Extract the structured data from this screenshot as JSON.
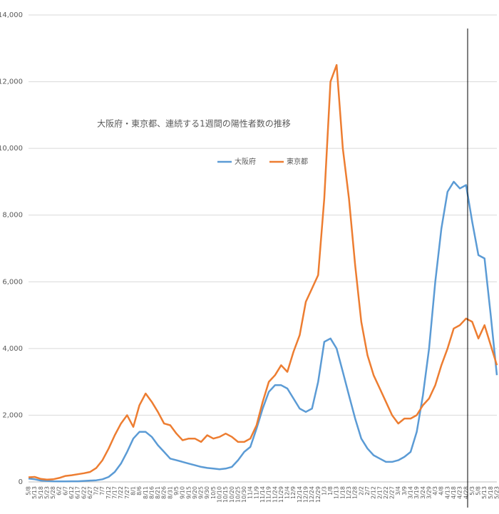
{
  "chart_data": {
    "type": "line",
    "title": "大阪府・東京都、連続する1週間の陽性者数の推移",
    "categories": [
      "5/8",
      "5/13",
      "5/18",
      "5/23",
      "5/28",
      "6/2",
      "6/7",
      "6/12",
      "6/17",
      "6/22",
      "6/27",
      "7/2",
      "7/7",
      "7/12",
      "7/17",
      "7/22",
      "7/27",
      "8/1",
      "8/6",
      "8/11",
      "8/16",
      "8/21",
      "8/26",
      "8/31",
      "9/5",
      "9/10",
      "9/15",
      "9/20",
      "9/25",
      "9/30",
      "10/5",
      "10/10",
      "10/15",
      "10/20",
      "10/25",
      "10/30",
      "11/4",
      "11/9",
      "11/14",
      "11/19",
      "11/24",
      "11/29",
      "12/4",
      "12/9",
      "12/14",
      "12/19",
      "12/24",
      "12/29",
      "1/3",
      "1/8",
      "1/13",
      "1/18",
      "1/23",
      "1/28",
      "2/2",
      "2/7",
      "2/12",
      "2/17",
      "2/22",
      "2/27",
      "3/4",
      "3/9",
      "3/14",
      "3/19",
      "3/24",
      "3/29",
      "4/3",
      "4/8",
      "4/13",
      "4/18",
      "4/23",
      "4/28",
      "5/3",
      "5/8",
      "5/13",
      "5/18",
      "5/23"
    ],
    "series": [
      {
        "name": "大阪府",
        "color": "#5b9bd5",
        "values": [
          100,
          80,
          40,
          30,
          20,
          15,
          15,
          20,
          20,
          30,
          40,
          50,
          80,
          150,
          300,
          550,
          900,
          1300,
          1500,
          1500,
          1350,
          1100,
          900,
          700,
          650,
          600,
          550,
          500,
          450,
          420,
          400,
          380,
          400,
          450,
          650,
          900,
          1050,
          1600,
          2200,
          2700,
          2900,
          2900,
          2800,
          2500,
          2200,
          2100,
          2200,
          3000,
          4200,
          4300,
          4000,
          3300,
          2600,
          1900,
          1300,
          1000,
          800,
          700,
          600,
          600,
          650,
          750,
          900,
          1500,
          2600,
          4000,
          6000,
          7600,
          8700,
          9000,
          8800,
          8900,
          7800,
          6800,
          6700,
          5000,
          3200
        ]
      },
      {
        "name": "東京都",
        "color": "#ed7d31",
        "values": [
          140,
          150,
          90,
          70,
          80,
          120,
          180,
          200,
          230,
          260,
          300,
          420,
          650,
          1000,
          1400,
          1750,
          2000,
          1650,
          2300,
          2650,
          2400,
          2100,
          1750,
          1700,
          1450,
          1250,
          1300,
          1300,
          1200,
          1400,
          1300,
          1350,
          1450,
          1350,
          1200,
          1200,
          1300,
          1700,
          2400,
          3000,
          3200,
          3500,
          3300,
          3900,
          4400,
          5400,
          5800,
          6200,
          8500,
          12000,
          12500,
          10000,
          8500,
          6500,
          4800,
          3800,
          3200,
          2800,
          2400,
          2000,
          1750,
          1900,
          1900,
          2000,
          2300,
          2500,
          2900,
          3500,
          4000,
          4600,
          4700,
          4900,
          4800,
          4300,
          4700,
          4100,
          3500
        ]
      }
    ],
    "ylim": [
      0,
      14000
    ],
    "yticks": [
      0,
      {
        "value": 2000,
        "label": "2,000"
      },
      {
        "value": 4000,
        "label": "4,000"
      },
      {
        "value": 6000,
        "label": "6,000"
      },
      {
        "value": 8000,
        "label": "8,000"
      },
      {
        "value": 10000,
        "label": "10,000"
      },
      {
        "value": 12000,
        "label": "12,000"
      },
      {
        "value": 14000,
        "label": "14,000"
      }
    ],
    "grid": true
  }
}
